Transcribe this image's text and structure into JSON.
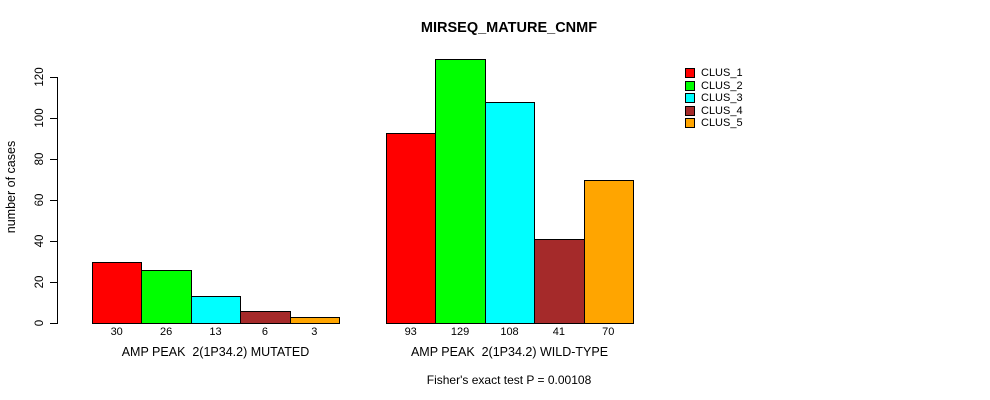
{
  "chart_data": {
    "type": "bar",
    "title": "MIRSEQ_MATURE_CNMF",
    "xlabel": "",
    "ylabel": "number of cases",
    "ylim": [
      0,
      129
    ],
    "yticks": [
      0,
      20,
      40,
      60,
      80,
      100,
      120
    ],
    "grid": false,
    "legend_position": "top-right",
    "bar_value_labels_shown": true,
    "categories": [
      "AMP PEAK  2(1P34.2) MUTATED",
      "AMP PEAK  2(1P34.2) WILD-TYPE"
    ],
    "series": [
      {
        "name": "CLUS_1",
        "color": "#FF0000",
        "values": [
          30,
          93
        ]
      },
      {
        "name": "CLUS_2",
        "color": "#00FF00",
        "values": [
          26,
          129
        ]
      },
      {
        "name": "CLUS_3",
        "color": "#00FFFF",
        "values": [
          13,
          108
        ]
      },
      {
        "name": "CLUS_4",
        "color": "#A52A2A",
        "values": [
          6,
          41
        ]
      },
      {
        "name": "CLUS_5",
        "color": "#FFA500",
        "values": [
          3,
          70
        ]
      }
    ],
    "annotation": "Fisher's exact test P = 0.00108"
  },
  "colors": {
    "background": "#FFFFFF",
    "axis": "#000000",
    "text": "#000000"
  }
}
